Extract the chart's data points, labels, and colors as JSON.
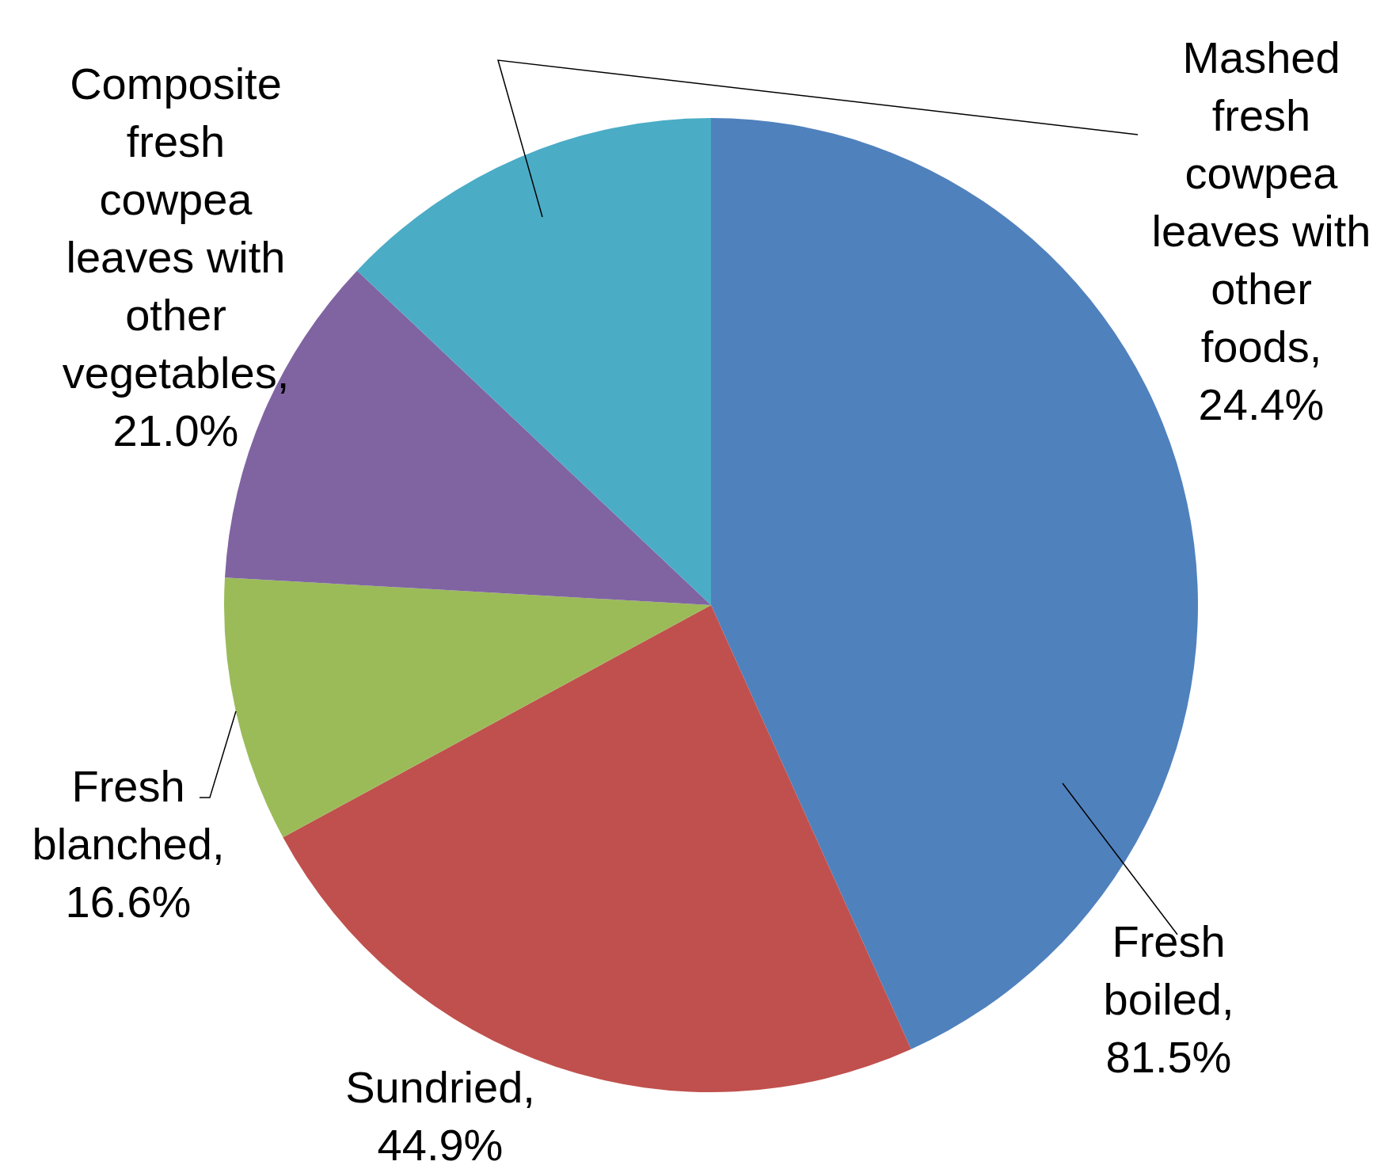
{
  "chart_data": {
    "type": "pie",
    "categories": [
      "Fresh boiled",
      "Sundried",
      "Fresh blanched",
      "Composite fresh cowpea leaves with other vegetables",
      "Mashed fresh cowpea leaves with other foods"
    ],
    "values": [
      81.5,
      44.9,
      16.6,
      21.0,
      24.4
    ],
    "value_labels": [
      ", 81.5%",
      ", 44.9%",
      ", 16.6%",
      ", 21.0%",
      ", 24.4%"
    ],
    "colors": [
      "#4f81bd",
      "#c0504d",
      "#9bbb59",
      "#8064a2",
      "#4bacc6"
    ],
    "legend": false
  }
}
